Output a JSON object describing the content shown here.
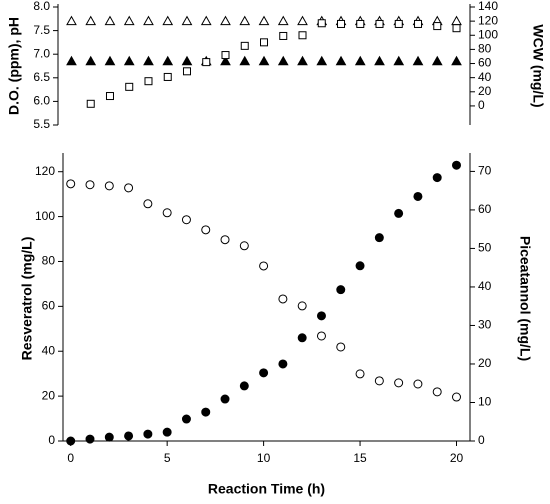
{
  "chart_data": [
    {
      "type": "scatter",
      "ylabel": "D.O. (ppm), pH",
      "y2label": "WCW (mg/L)",
      "x": [
        0,
        1,
        2,
        3,
        4,
        5,
        6,
        7,
        8,
        9,
        10,
        11,
        12,
        13,
        14,
        15,
        16,
        17,
        18,
        19,
        20
      ],
      "xlim": [
        -0.7,
        20.7
      ],
      "ylim": [
        5.5,
        8.0
      ],
      "yticks": [
        5.5,
        {
          "value": 6,
          "label": "6.0"
        },
        6.5,
        {
          "value": 7,
          "label": "7.0"
        },
        7.5,
        {
          "value": 8,
          "label": "8.0"
        }
      ],
      "y2lim": [
        -27,
        140
      ],
      "y2ticks": [
        0,
        20,
        40,
        60,
        80,
        100,
        120,
        140
      ],
      "series": [
        {
          "marker": "triangle",
          "color": "#000000",
          "values": [
            7.7,
            7.7,
            7.7,
            7.7,
            7.7,
            7.7,
            7.7,
            7.7,
            7.7,
            7.7,
            7.7,
            7.7,
            7.7,
            7.7,
            7.7,
            7.7,
            7.7,
            7.7,
            7.7,
            7.7,
            7.7
          ]
        },
        {
          "marker": "triangle-filled",
          "color": "#000000",
          "values": [
            6.85,
            6.85,
            6.85,
            6.85,
            6.85,
            6.85,
            6.85,
            6.85,
            6.85,
            6.85,
            6.85,
            6.85,
            6.85,
            6.85,
            6.85,
            6.85,
            6.85,
            6.85,
            6.85,
            6.85,
            6.85
          ]
        },
        {
          "marker": "square",
          "color": "#000000",
          "axis": "y2",
          "values": [
            null,
            3,
            14,
            27,
            35,
            41,
            49,
            62,
            72,
            85,
            90,
            99,
            100,
            117,
            116,
            116,
            116,
            116,
            116,
            113,
            110
          ]
        }
      ]
    },
    {
      "type": "scatter",
      "xlabel": "Reaction Time (h)",
      "ylabel": "Resveratrol (mg/L)",
      "y2label": "Piceatannol (mg/L)",
      "x": [
        0,
        1,
        2,
        3,
        4,
        5,
        6,
        7,
        8,
        9,
        10,
        11,
        12,
        13,
        14,
        15,
        16,
        17,
        18,
        19,
        20
      ],
      "xlim": [
        -0.4,
        20.7
      ],
      "xticks": [
        0,
        5,
        10,
        15,
        20
      ],
      "ylim": [
        0,
        127
      ],
      "yticks": [
        0,
        20,
        40,
        60,
        80,
        100,
        120
      ],
      "y2lim": [
        0,
        74
      ],
      "y2ticks": [
        0,
        10,
        20,
        30,
        40,
        50,
        60,
        70
      ],
      "series": [
        {
          "marker": "circle",
          "color": "#000000",
          "values": [
            114.6,
            114.2,
            113.7,
            112.8,
            105.7,
            101.7,
            98.6,
            94.1,
            89.7,
            87,
            78,
            63.3,
            60.2,
            46.8,
            41.9,
            29.9,
            26.8,
            25.9,
            25.4,
            21.9,
            19.6
          ]
        },
        {
          "marker": "circle-filled",
          "color": "#000000",
          "axis": "y2",
          "values": [
            0,
            0.5,
            1,
            1.3,
            1.8,
            2.3,
            5.7,
            7.5,
            10.9,
            14.3,
            17.7,
            20,
            26.8,
            32.5,
            39.3,
            45.5,
            52.8,
            59.1,
            63.5,
            68.4,
            71.6
          ]
        }
      ]
    }
  ]
}
